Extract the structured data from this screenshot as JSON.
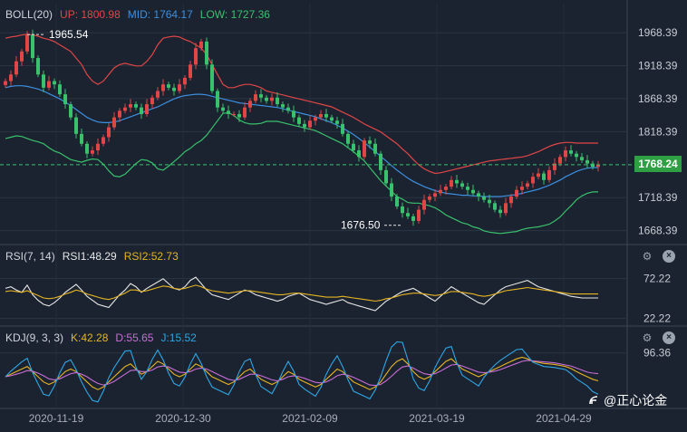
{
  "boll_header": {
    "name": "BOLL(20)",
    "up": "UP: 1800.98",
    "mid": "MID: 1764.17",
    "low": "LOW: 1727.36"
  },
  "rsi_header": {
    "name": "RSI(7, 14)",
    "rsi1": "RSI1:48.29",
    "rsi2": "RSI2:52.73"
  },
  "kdj_header": {
    "name": "KDJ(9, 3, 3)",
    "k": "K:42.28",
    "d": "D:55.65",
    "j": "J:15.52"
  },
  "price_tag": "1768.24",
  "watermark": "@正心论金",
  "icons": {
    "settings": "gear-icon",
    "close": "close-icon",
    "watermark": "logo-icon"
  },
  "colors": {
    "background": "#1b2330",
    "up": "#e04646",
    "down": "#39c16c",
    "mid": "#3d8fe0",
    "low": "#39c16c",
    "rsi1": "#e6e6e6",
    "rsi2": "#e6b422",
    "k": "#e6b422",
    "d": "#c86dd7",
    "j": "#2ea7e6"
  },
  "chart_data": [
    {
      "type": "candlestick",
      "indicator": "BOLL(20)",
      "y_ticks": [
        "1968.39",
        "1918.39",
        "1868.39",
        "1818.39",
        "1718.39",
        "1668.39"
      ],
      "ylim": [
        1650,
        1985
      ],
      "x_ticks": [
        "2020-11-19",
        "2020-12-30",
        "2021-02-09",
        "2021-03-19",
        "2021-04-29"
      ],
      "annotations": [
        {
          "label": "1965.54",
          "value": 1965.54,
          "type": "high"
        },
        {
          "label": "1676.50",
          "value": 1676.5,
          "type": "low"
        }
      ],
      "current_price": 1768.24,
      "close": [
        1895,
        1905,
        1925,
        1940,
        1965,
        1930,
        1905,
        1885,
        1895,
        1890,
        1875,
        1860,
        1840,
        1815,
        1800,
        1785,
        1790,
        1800,
        1810,
        1825,
        1840,
        1850,
        1855,
        1860,
        1855,
        1845,
        1860,
        1870,
        1880,
        1890,
        1885,
        1880,
        1890,
        1900,
        1920,
        1945,
        1955,
        1920,
        1880,
        1855,
        1850,
        1845,
        1845,
        1840,
        1855,
        1865,
        1875,
        1870,
        1865,
        1870,
        1860,
        1855,
        1850,
        1840,
        1830,
        1825,
        1835,
        1840,
        1845,
        1840,
        1835,
        1830,
        1815,
        1800,
        1790,
        1780,
        1805,
        1800,
        1785,
        1760,
        1740,
        1720,
        1705,
        1695,
        1690,
        1683,
        1700,
        1715,
        1720,
        1725,
        1730,
        1735,
        1745,
        1740,
        1735,
        1730,
        1725,
        1720,
        1715,
        1710,
        1700,
        1695,
        1710,
        1720,
        1730,
        1735,
        1740,
        1750,
        1755,
        1745,
        1760,
        1770,
        1780,
        1790,
        1785,
        1780,
        1775,
        1770,
        1765,
        1768
      ],
      "upper": [
        1960,
        1962,
        1963,
        1965,
        1966,
        1965,
        1963,
        1960,
        1958,
        1955,
        1950,
        1945,
        1940,
        1930,
        1920,
        1905,
        1895,
        1890,
        1895,
        1905,
        1915,
        1920,
        1922,
        1920,
        1918,
        1918,
        1925,
        1935,
        1950,
        1960,
        1962,
        1963,
        1962,
        1958,
        1955,
        1950,
        1945,
        1935,
        1920,
        1905,
        1890,
        1885,
        1885,
        1888,
        1890,
        1890,
        1888,
        1885,
        1880,
        1878,
        1876,
        1874,
        1872,
        1870,
        1868,
        1866,
        1864,
        1862,
        1860,
        1858,
        1856,
        1852,
        1848,
        1844,
        1840,
        1835,
        1830,
        1826,
        1822,
        1818,
        1812,
        1806,
        1800,
        1792,
        1785,
        1776,
        1768,
        1762,
        1758,
        1755,
        1756,
        1758,
        1760,
        1762,
        1764,
        1766,
        1768,
        1770,
        1772,
        1774,
        1775,
        1776,
        1777,
        1778,
        1779,
        1780,
        1782,
        1785,
        1788,
        1792,
        1796,
        1799,
        1801,
        1802,
        1802,
        1801,
        1801,
        1801,
        1801,
        1801
      ],
      "middle": [
        1885,
        1887,
        1888,
        1888,
        1887,
        1885,
        1883,
        1880,
        1876,
        1872,
        1868,
        1863,
        1858,
        1852,
        1846,
        1840,
        1836,
        1833,
        1832,
        1832,
        1833,
        1835,
        1838,
        1841,
        1844,
        1847,
        1850,
        1853,
        1856,
        1860,
        1864,
        1868,
        1871,
        1873,
        1874,
        1875,
        1875,
        1874,
        1872,
        1870,
        1868,
        1866,
        1864,
        1862,
        1861,
        1860,
        1859,
        1858,
        1857,
        1856,
        1855,
        1853,
        1851,
        1849,
        1847,
        1845,
        1843,
        1841,
        1838,
        1835,
        1832,
        1828,
        1824,
        1819,
        1814,
        1808,
        1802,
        1795,
        1788,
        1781,
        1774,
        1767,
        1760,
        1754,
        1748,
        1743,
        1739,
        1735,
        1732,
        1729,
        1727,
        1725,
        1724,
        1723,
        1722,
        1722,
        1721,
        1721,
        1720,
        1720,
        1720,
        1720,
        1721,
        1722,
        1723,
        1725,
        1727,
        1729,
        1731,
        1734,
        1737,
        1741,
        1745,
        1750,
        1754,
        1758,
        1761,
        1763,
        1764,
        1764
      ],
      "lower": [
        1808,
        1810,
        1812,
        1811,
        1808,
        1805,
        1803,
        1800,
        1794,
        1789,
        1786,
        1781,
        1776,
        1774,
        1772,
        1775,
        1777,
        1776,
        1769,
        1759,
        1751,
        1750,
        1754,
        1762,
        1770,
        1776,
        1775,
        1771,
        1762,
        1760,
        1766,
        1773,
        1780,
        1788,
        1793,
        1800,
        1805,
        1813,
        1824,
        1835,
        1846,
        1847,
        1843,
        1836,
        1832,
        1830,
        1830,
        1831,
        1834,
        1834,
        1834,
        1832,
        1830,
        1828,
        1826,
        1824,
        1822,
        1820,
        1816,
        1812,
        1808,
        1804,
        1800,
        1794,
        1788,
        1781,
        1774,
        1764,
        1754,
        1744,
        1736,
        1728,
        1720,
        1716,
        1711,
        1710,
        1710,
        1708,
        1706,
        1703,
        1698,
        1692,
        1688,
        1684,
        1680,
        1678,
        1674,
        1672,
        1668,
        1666,
        1665,
        1664,
        1665,
        1666,
        1667,
        1670,
        1672,
        1673,
        1674,
        1676,
        1678,
        1683,
        1689,
        1698,
        1706,
        1715,
        1721,
        1725,
        1727,
        1727
      ]
    },
    {
      "type": "line",
      "indicator": "RSI(7, 14)",
      "y_ticks": [
        "72.22",
        "22.22"
      ],
      "ylim": [
        15,
        90
      ],
      "series": [
        {
          "name": "RSI1",
          "values": [
            60,
            62,
            58,
            55,
            64,
            52,
            45,
            40,
            38,
            42,
            48,
            55,
            60,
            65,
            58,
            50,
            45,
            40,
            38,
            36,
            44,
            52,
            58,
            66,
            62,
            55,
            60,
            64,
            68,
            72,
            66,
            60,
            58,
            62,
            70,
            74,
            66,
            58,
            52,
            50,
            48,
            46,
            50,
            54,
            58,
            56,
            52,
            50,
            48,
            46,
            44,
            46,
            50,
            52,
            54,
            50,
            46,
            44,
            42,
            40,
            42,
            44,
            46,
            42,
            40,
            38,
            36,
            34,
            32,
            38,
            44,
            48,
            52,
            56,
            58,
            60,
            56,
            52,
            48,
            44,
            50,
            56,
            62,
            58,
            54,
            50,
            46,
            42,
            40,
            46,
            52,
            58,
            62,
            64,
            66,
            68,
            70,
            66,
            62,
            60,
            58,
            56,
            54,
            52,
            50,
            49,
            48,
            48,
            48,
            48
          ]
        },
        {
          "name": "RSI2",
          "values": [
            56,
            57,
            56,
            55,
            57,
            54,
            51,
            48,
            47,
            48,
            50,
            53,
            55,
            58,
            56,
            53,
            51,
            49,
            47,
            46,
            48,
            51,
            54,
            58,
            58,
            56,
            57,
            59,
            61,
            63,
            62,
            60,
            59,
            60,
            62,
            64,
            62,
            59,
            57,
            56,
            55,
            54,
            55,
            56,
            57,
            57,
            56,
            55,
            54,
            53,
            52,
            52,
            53,
            54,
            54,
            53,
            52,
            51,
            50,
            49,
            49,
            49,
            50,
            49,
            48,
            47,
            46,
            45,
            44,
            45,
            47,
            48,
            50,
            52,
            53,
            54,
            54,
            53,
            52,
            51,
            52,
            54,
            56,
            56,
            55,
            54,
            53,
            51,
            50,
            51,
            53,
            55,
            57,
            58,
            59,
            60,
            61,
            60,
            59,
            58,
            57,
            56,
            55,
            54,
            53,
            53,
            53,
            53,
            53,
            53
          ]
        }
      ]
    },
    {
      "type": "line",
      "indicator": "KDJ(9, 3, 3)",
      "y_ticks": [
        "96.36"
      ],
      "ylim": [
        -10,
        110
      ],
      "series": [
        {
          "name": "K",
          "values": [
            50,
            55,
            60,
            65,
            70,
            60,
            50,
            40,
            35,
            40,
            50,
            60,
            65,
            60,
            50,
            40,
            30,
            25,
            30,
            40,
            50,
            60,
            70,
            75,
            65,
            55,
            60,
            70,
            80,
            75,
            65,
            55,
            50,
            55,
            65,
            75,
            70,
            60,
            50,
            45,
            40,
            35,
            40,
            50,
            60,
            65,
            55,
            45,
            40,
            35,
            40,
            50,
            60,
            55,
            45,
            40,
            35,
            30,
            35,
            45,
            55,
            65,
            60,
            50,
            40,
            35,
            30,
            25,
            30,
            40,
            55,
            70,
            80,
            85,
            75,
            60,
            50,
            45,
            50,
            60,
            70,
            80,
            85,
            75,
            65,
            60,
            55,
            50,
            55,
            60,
            65,
            70,
            75,
            80,
            85,
            88,
            85,
            80,
            78,
            76,
            75,
            74,
            72,
            70,
            66,
            60,
            55,
            50,
            45,
            42
          ]
        },
        {
          "name": "D",
          "values": [
            50,
            52,
            55,
            58,
            62,
            61,
            57,
            52,
            46,
            44,
            46,
            51,
            56,
            58,
            55,
            50,
            43,
            37,
            34,
            36,
            41,
            48,
            55,
            62,
            63,
            60,
            60,
            63,
            69,
            71,
            69,
            64,
            59,
            58,
            60,
            65,
            67,
            65,
            60,
            55,
            50,
            45,
            43,
            45,
            50,
            55,
            55,
            52,
            48,
            44,
            42,
            45,
            50,
            52,
            50,
            47,
            43,
            39,
            38,
            40,
            45,
            52,
            55,
            53,
            49,
            44,
            39,
            34,
            33,
            35,
            42,
            51,
            61,
            69,
            71,
            67,
            61,
            56,
            54,
            56,
            61,
            67,
            73,
            74,
            71,
            67,
            63,
            59,
            58,
            59,
            61,
            64,
            68,
            72,
            76,
            80,
            82,
            81,
            80,
            79,
            78,
            77,
            75,
            73,
            71,
            67,
            63,
            59,
            57,
            56
          ]
        },
        {
          "name": "J",
          "values": [
            50,
            61,
            70,
            79,
            86,
            58,
            36,
            16,
            13,
            32,
            58,
            78,
            83,
            64,
            40,
            20,
            4,
            1,
            22,
            48,
            68,
            84,
            100,
            101,
            69,
            45,
            60,
            84,
            102,
            83,
            57,
            37,
            32,
            49,
            75,
            95,
            76,
            50,
            30,
            25,
            20,
            15,
            34,
            60,
            80,
            85,
            55,
            31,
            24,
            17,
            36,
            60,
            80,
            61,
            35,
            26,
            19,
            12,
            29,
            55,
            75,
            91,
            70,
            44,
            22,
            17,
            12,
            7,
            24,
            50,
            81,
            108,
            118,
            117,
            83,
            46,
            28,
            23,
            42,
            68,
            88,
            106,
            109,
            77,
            53,
            46,
            39,
            32,
            49,
            62,
            73,
            82,
            89,
            96,
            103,
            104,
            91,
            78,
            74,
            70,
            69,
            68,
            66,
            64,
            56,
            46,
            39,
            32,
            21,
            16
          ]
        }
      ]
    }
  ]
}
